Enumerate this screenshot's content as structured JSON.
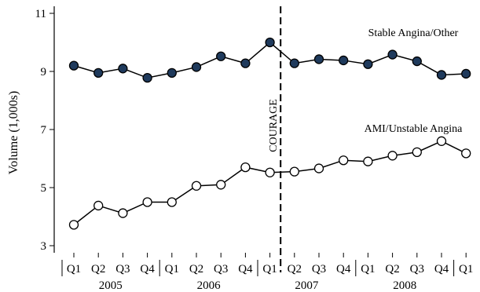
{
  "chart_data": {
    "type": "line",
    "ylabel": "Volume (1,000s)",
    "ylim": [
      3,
      11
    ],
    "yticks": [
      3,
      5,
      7,
      9,
      11
    ],
    "categories": [
      "Q1",
      "Q2",
      "Q3",
      "Q4",
      "Q1",
      "Q2",
      "Q3",
      "Q4",
      "Q1",
      "Q2",
      "Q3",
      "Q4",
      "Q1",
      "Q2",
      "Q3",
      "Q4",
      "Q1"
    ],
    "years": [
      {
        "label": "2005",
        "start": 0,
        "end": 3
      },
      {
        "label": "2006",
        "start": 4,
        "end": 7
      },
      {
        "label": "2007",
        "start": 8,
        "end": 11
      },
      {
        "label": "2008",
        "start": 12,
        "end": 15
      }
    ],
    "series": [
      {
        "name": "Stable Angina/Other",
        "marker": "filled",
        "color": "#1f3a5c",
        "values": [
          9.2,
          8.95,
          9.1,
          8.78,
          8.95,
          9.15,
          9.52,
          9.28,
          10.0,
          9.28,
          9.42,
          9.38,
          9.25,
          9.58,
          9.35,
          8.88,
          8.92
        ]
      },
      {
        "name": "AMI/Unstable Angina",
        "marker": "open",
        "color": "#ffffff",
        "values": [
          3.72,
          4.38,
          4.12,
          4.5,
          4.5,
          5.06,
          5.1,
          5.7,
          5.52,
          5.55,
          5.66,
          5.94,
          5.9,
          6.1,
          6.22,
          6.6,
          6.18
        ]
      }
    ],
    "annotations": [
      {
        "text": "COURAGE",
        "type": "vertical-dashed-line",
        "between": [
          8,
          9
        ]
      }
    ]
  }
}
